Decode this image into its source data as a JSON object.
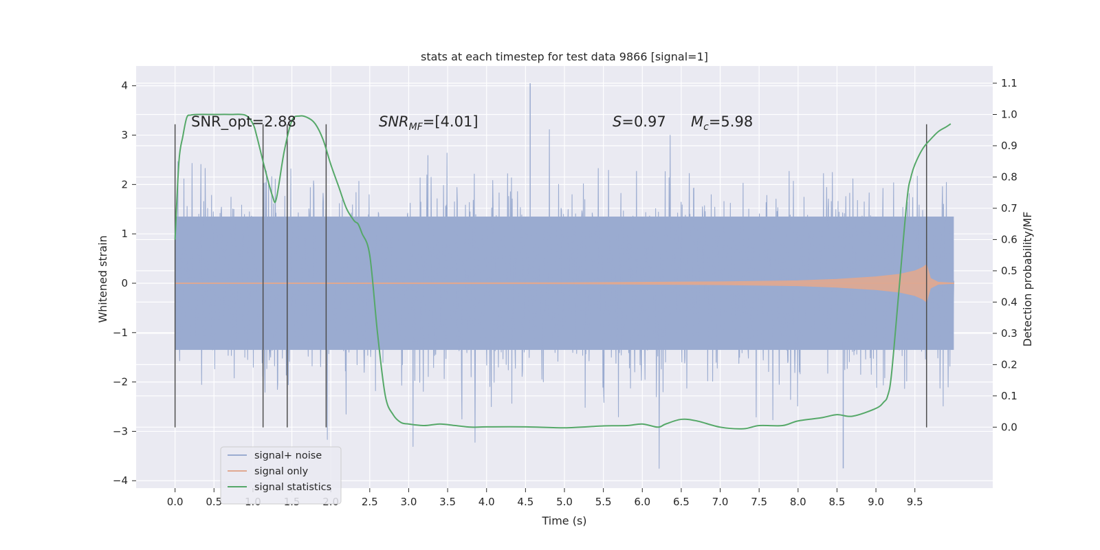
{
  "chart_data": {
    "type": "line",
    "title": "stats at each timestep for test data 9866 [signal=1]",
    "xlabel": "Time (s)",
    "ylabel": "Whitened strain",
    "y2label": "Detection probability/MF",
    "xlim": [
      -0.5,
      10.5
    ],
    "ylim": [
      -4.15,
      4.4
    ],
    "y2lim": [
      -0.195,
      1.155
    ],
    "xticks": [
      "0.0",
      "0.5",
      "1.0",
      "1.5",
      "2.0",
      "2.5",
      "3.0",
      "3.5",
      "4.0",
      "4.5",
      "5.0",
      "5.5",
      "6.0",
      "6.5",
      "7.0",
      "7.5",
      "8.0",
      "8.5",
      "9.0",
      "9.5"
    ],
    "yticks": [
      "4",
      "3",
      "2",
      "1",
      "0",
      "−1",
      "−2",
      "−3",
      "−4"
    ],
    "y2ticks": [
      "0.0",
      "0.1",
      "0.2",
      "0.3",
      "0.4",
      "0.5",
      "0.6",
      "0.7",
      "0.8",
      "0.9",
      "1.0",
      "1.1"
    ],
    "grid": true,
    "legend_position": "lower-left",
    "noise_envelope": {
      "x_range": [
        0.0,
        10.0
      ],
      "band_amplitude": 1.35,
      "peak_high": 4.05,
      "peak_low": -3.75
    },
    "signal_envelope": {
      "x": [
        0.0,
        5.0,
        7.0,
        8.0,
        8.5,
        9.0,
        9.3,
        9.5,
        9.6,
        9.65,
        9.7,
        9.8,
        10.0
      ],
      "amplitude": [
        0.005,
        0.01,
        0.03,
        0.05,
        0.08,
        0.13,
        0.18,
        0.25,
        0.32,
        0.38,
        0.1,
        0.02,
        0.005
      ]
    },
    "vertical_lines": [
      0.0,
      1.13,
      1.44,
      1.94,
      9.65
    ],
    "vertical_line_range": [
      -2.92,
      3.22
    ],
    "series": [
      {
        "name": "signal+ noise",
        "color": "#9aabd0"
      },
      {
        "name": "signal only",
        "color": "#e0a890"
      },
      {
        "name": "signal statistics",
        "color": "#55a868",
        "x": [
          0.0,
          0.05,
          0.1,
          0.15,
          0.2,
          0.3,
          0.5,
          0.7,
          0.9,
          1.0,
          1.05,
          1.15,
          1.25,
          1.3,
          1.4,
          1.5,
          1.6,
          1.7,
          1.8,
          1.9,
          2.0,
          2.1,
          2.2,
          2.3,
          2.35,
          2.4,
          2.5,
          2.6,
          2.7,
          2.8,
          2.9,
          3.0,
          3.2,
          3.4,
          3.6,
          3.8,
          4.0,
          4.5,
          5.0,
          5.5,
          5.8,
          6.0,
          6.2,
          6.3,
          6.5,
          6.7,
          7.0,
          7.3,
          7.5,
          7.8,
          8.0,
          8.3,
          8.5,
          8.7,
          9.0,
          9.1,
          9.15,
          9.2,
          9.3,
          9.4,
          9.45,
          9.5,
          9.6,
          9.7,
          9.8,
          9.9,
          9.96
        ],
        "values": [
          0.6,
          0.85,
          0.93,
          0.99,
          0.998,
          1.0,
          1.0,
          1.0,
          0.998,
          0.97,
          0.93,
          0.83,
          0.74,
          0.73,
          0.88,
          0.98,
          0.995,
          0.99,
          0.97,
          0.92,
          0.84,
          0.77,
          0.7,
          0.66,
          0.65,
          0.62,
          0.55,
          0.3,
          0.1,
          0.04,
          0.015,
          0.01,
          0.005,
          0.01,
          0.005,
          0.0,
          0.001,
          0.001,
          -0.002,
          0.004,
          0.005,
          0.01,
          0.0,
          0.01,
          0.025,
          0.02,
          0.0,
          -0.005,
          0.005,
          0.005,
          0.02,
          0.03,
          0.04,
          0.035,
          0.06,
          0.08,
          0.1,
          0.17,
          0.45,
          0.73,
          0.8,
          0.84,
          0.89,
          0.92,
          0.945,
          0.96,
          0.97
        ],
        "axis": "right"
      }
    ],
    "annotations": [
      {
        "text_main": "SNR_opt=2.88",
        "sub": ""
      },
      {
        "text_main": "SNR",
        "sub": "MF",
        "suffix": "=[4.01]"
      },
      {
        "text_main": "S",
        "suffix": "=0.97"
      },
      {
        "text_main": "M",
        "sub": "c",
        "suffix": "=5.98"
      }
    ]
  }
}
